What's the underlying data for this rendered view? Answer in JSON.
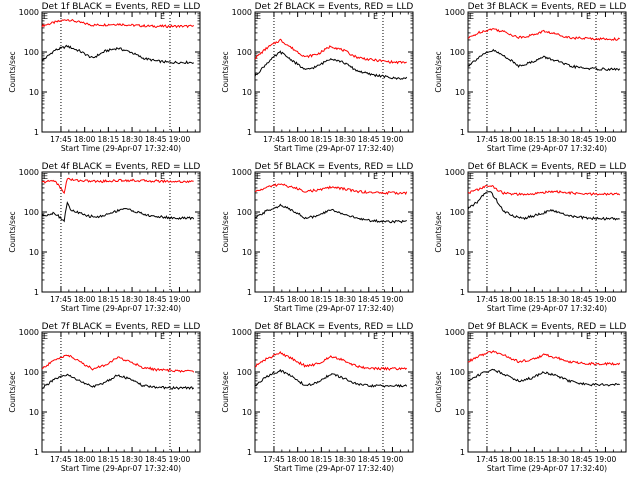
{
  "figure": {
    "y_axis_label": "Counts/sec",
    "x_axis_label": "Start Time (29-Apr-07 17:32:40)",
    "x_ticks": [
      "17:45",
      "18:00",
      "18:15",
      "18:30",
      "18:45",
      "19:00"
    ],
    "y_ticks": [
      "1",
      "10",
      "100",
      "1000"
    ],
    "e_marker": "E",
    "colors": {
      "events": "#000000",
      "lld": "#ff0000",
      "axis": "#000000"
    }
  },
  "chart_data": [
    {
      "type": "line",
      "title": "Det 1f BLACK = Events, RED = LLD",
      "xlabel": "Start Time (29-Apr-07 17:32:40)",
      "ylabel": "Counts/sec",
      "x_range_minutes": [
        0,
        100
      ],
      "ylim": [
        1,
        1000
      ],
      "y_scale": "log",
      "dotted_lines_min": [
        12,
        81
      ],
      "x": [
        0,
        8,
        16,
        24,
        32,
        40,
        48,
        56,
        64,
        72,
        80,
        88,
        96
      ],
      "series": [
        {
          "name": "Events",
          "color": "#000000",
          "values": [
            60,
            110,
            140,
            105,
            70,
            105,
            125,
            100,
            70,
            60,
            55,
            55,
            55
          ]
        },
        {
          "name": "LLD",
          "color": "#ff0000",
          "values": [
            450,
            550,
            650,
            550,
            470,
            480,
            500,
            470,
            450,
            440,
            440,
            440,
            440
          ]
        }
      ]
    },
    {
      "type": "line",
      "title": "Det 2f BLACK = Events, RED = LLD",
      "xlabel": "Start Time (29-Apr-07 17:32:40)",
      "ylabel": "Counts/sec",
      "x_range_minutes": [
        0,
        100
      ],
      "ylim": [
        1,
        1000
      ],
      "y_scale": "log",
      "dotted_lines_min": [
        12,
        81
      ],
      "x": [
        0,
        8,
        16,
        24,
        32,
        40,
        48,
        56,
        64,
        72,
        80,
        88,
        96
      ],
      "series": [
        {
          "name": "Events",
          "color": "#000000",
          "values": [
            25,
            55,
            100,
            60,
            35,
            45,
            70,
            55,
            35,
            28,
            25,
            22,
            22
          ]
        },
        {
          "name": "LLD",
          "color": "#ff0000",
          "values": [
            70,
            130,
            200,
            120,
            75,
            90,
            140,
            110,
            75,
            65,
            60,
            55,
            55
          ]
        }
      ]
    },
    {
      "type": "line",
      "title": "Det 3f BLACK = Events, RED = LLD",
      "xlabel": "Start Time (29-Apr-07 17:32:40)",
      "ylabel": "Counts/sec",
      "x_range_minutes": [
        0,
        100
      ],
      "ylim": [
        1,
        1000
      ],
      "y_scale": "log",
      "dotted_lines_min": [
        12,
        81
      ],
      "x": [
        0,
        8,
        16,
        24,
        32,
        40,
        48,
        56,
        64,
        72,
        80,
        88,
        96
      ],
      "series": [
        {
          "name": "Events",
          "color": "#000000",
          "values": [
            45,
            80,
            110,
            75,
            45,
            55,
            75,
            60,
            45,
            40,
            38,
            37,
            37
          ]
        },
        {
          "name": "LLD",
          "color": "#ff0000",
          "values": [
            220,
            320,
            380,
            310,
            230,
            260,
            330,
            280,
            230,
            220,
            215,
            210,
            210
          ]
        }
      ]
    },
    {
      "type": "line",
      "title": "Det 4f BLACK = Events, RED = LLD",
      "xlabel": "Start Time (29-Apr-07 17:32:40)",
      "ylabel": "Counts/sec",
      "x_range_minutes": [
        0,
        100
      ],
      "ylim": [
        1,
        1000
      ],
      "y_scale": "log",
      "dotted_lines_min": [
        12,
        81
      ],
      "x": [
        0,
        8,
        14,
        16,
        18,
        22,
        28,
        36,
        44,
        52,
        60,
        68,
        76,
        84,
        92,
        96
      ],
      "series": [
        {
          "name": "Events",
          "color": "#000000",
          "values": [
            80,
            95,
            60,
            180,
            110,
            100,
            80,
            75,
            95,
            125,
            100,
            80,
            75,
            70,
            70,
            70
          ]
        },
        {
          "name": "LLD",
          "color": "#ff0000",
          "values": [
            550,
            620,
            300,
            700,
            640,
            620,
            600,
            580,
            600,
            620,
            610,
            600,
            590,
            580,
            575,
            575
          ]
        }
      ]
    },
    {
      "type": "line",
      "title": "Det 5f BLACK = Events, RED = LLD",
      "xlabel": "Start Time (29-Apr-07 17:32:40)",
      "ylabel": "Counts/sec",
      "x_range_minutes": [
        0,
        100
      ],
      "ylim": [
        1,
        1000
      ],
      "y_scale": "log",
      "dotted_lines_min": [
        12,
        81
      ],
      "x": [
        0,
        8,
        16,
        24,
        32,
        40,
        48,
        56,
        64,
        72,
        80,
        88,
        96
      ],
      "series": [
        {
          "name": "Events",
          "color": "#000000",
          "values": [
            70,
            110,
            145,
            110,
            70,
            80,
            115,
            90,
            70,
            62,
            58,
            58,
            58
          ]
        },
        {
          "name": "LLD",
          "color": "#ff0000",
          "values": [
            320,
            420,
            500,
            410,
            330,
            350,
            420,
            380,
            330,
            310,
            300,
            300,
            300
          ]
        }
      ]
    },
    {
      "type": "line",
      "title": "Det 6f BLACK = Events, RED = LLD",
      "xlabel": "Start Time (29-Apr-07 17:32:40)",
      "ylabel": "Counts/sec",
      "x_range_minutes": [
        0,
        100
      ],
      "ylim": [
        1,
        1000
      ],
      "y_scale": "log",
      "dotted_lines_min": [
        12,
        81
      ],
      "x": [
        0,
        6,
        10,
        14,
        18,
        22,
        28,
        36,
        44,
        52,
        60,
        68,
        76,
        84,
        92,
        96
      ],
      "series": [
        {
          "name": "Events",
          "color": "#000000",
          "values": [
            120,
            180,
            280,
            330,
            200,
            110,
            80,
            70,
            85,
            110,
            90,
            75,
            70,
            68,
            68,
            68
          ]
        },
        {
          "name": "LLD",
          "color": "#ff0000",
          "values": [
            300,
            360,
            420,
            460,
            380,
            300,
            280,
            270,
            290,
            330,
            310,
            290,
            280,
            280,
            280,
            280
          ]
        }
      ]
    },
    {
      "type": "line",
      "title": "Det 7f BLACK = Events, RED = LLD",
      "xlabel": "Start Time (29-Apr-07 17:32:40)",
      "ylabel": "Counts/sec",
      "x_range_minutes": [
        0,
        100
      ],
      "ylim": [
        1,
        1000
      ],
      "y_scale": "log",
      "dotted_lines_min": [
        12,
        81
      ],
      "x": [
        0,
        8,
        16,
        24,
        32,
        40,
        48,
        56,
        64,
        72,
        80,
        88,
        96
      ],
      "series": [
        {
          "name": "Events",
          "color": "#000000",
          "values": [
            40,
            65,
            85,
            60,
            42,
            55,
            85,
            65,
            45,
            42,
            40,
            40,
            40
          ]
        },
        {
          "name": "LLD",
          "color": "#ff0000",
          "values": [
            120,
            200,
            270,
            180,
            120,
            150,
            230,
            180,
            130,
            115,
            110,
            105,
            105
          ]
        }
      ]
    },
    {
      "type": "line",
      "title": "Det 8f BLACK = Events, RED = LLD",
      "xlabel": "Start Time (29-Apr-07 17:32:40)",
      "ylabel": "Counts/sec",
      "x_range_minutes": [
        0,
        100
      ],
      "ylim": [
        1,
        1000
      ],
      "y_scale": "log",
      "dotted_lines_min": [
        12,
        81
      ],
      "x": [
        0,
        8,
        16,
        24,
        32,
        40,
        48,
        56,
        64,
        72,
        80,
        88,
        96
      ],
      "series": [
        {
          "name": "Events",
          "color": "#000000",
          "values": [
            45,
            80,
            110,
            75,
            45,
            55,
            90,
            70,
            50,
            45,
            45,
            45,
            45
          ]
        },
        {
          "name": "LLD",
          "color": "#ff0000",
          "values": [
            140,
            220,
            300,
            210,
            140,
            160,
            250,
            200,
            140,
            125,
            120,
            120,
            120
          ]
        }
      ]
    },
    {
      "type": "line",
      "title": "Det 9f BLACK = Events, RED = LLD",
      "xlabel": "Start Time (29-Apr-07 17:32:40)",
      "ylabel": "Counts/sec",
      "x_range_minutes": [
        0,
        100
      ],
      "ylim": [
        1,
        1000
      ],
      "y_scale": "log",
      "dotted_lines_min": [
        12,
        81
      ],
      "x": [
        0,
        8,
        16,
        24,
        32,
        40,
        48,
        56,
        64,
        72,
        80,
        88,
        96
      ],
      "series": [
        {
          "name": "Events",
          "color": "#000000",
          "values": [
            60,
            90,
            115,
            85,
            60,
            70,
            100,
            80,
            60,
            50,
            48,
            48,
            48
          ]
        },
        {
          "name": "LLD",
          "color": "#ff0000",
          "values": [
            180,
            260,
            330,
            250,
            180,
            200,
            270,
            230,
            180,
            165,
            160,
            160,
            160
          ]
        }
      ]
    }
  ]
}
